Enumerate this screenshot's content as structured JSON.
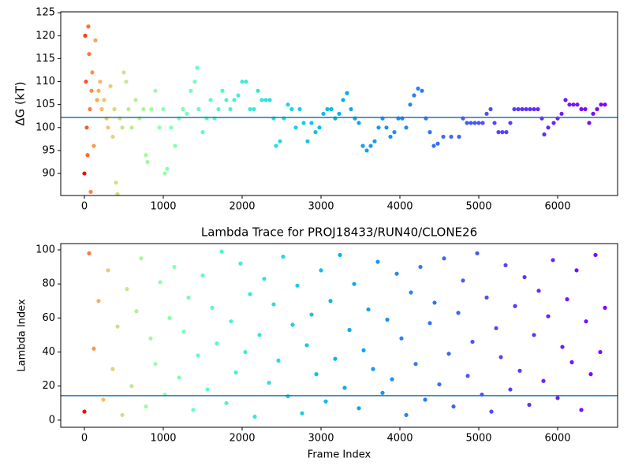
{
  "chart_data": [
    {
      "type": "scatter",
      "ylabel": "ΔG (kT)",
      "colormap": "rainbow_r",
      "hline": 102.2,
      "hline_color": "#1f77b4",
      "xlim": [
        -300,
        6760
      ],
      "xticks": [
        0,
        1000,
        2000,
        3000,
        4000,
        5000,
        6000
      ],
      "ylim": [
        85.2,
        125.2
      ],
      "yticks": [
        90,
        95,
        100,
        105,
        110,
        115,
        120,
        125
      ],
      "x": [
        0,
        10,
        20,
        30,
        40,
        50,
        60,
        70,
        80,
        90,
        100,
        120,
        140,
        160,
        180,
        200,
        220,
        250,
        280,
        300,
        330,
        360,
        380,
        400,
        420,
        450,
        480,
        500,
        530,
        560,
        600,
        650,
        700,
        750,
        780,
        800,
        850,
        900,
        950,
        1000,
        1020,
        1050,
        1100,
        1150,
        1200,
        1250,
        1300,
        1350,
        1400,
        1430,
        1450,
        1500,
        1550,
        1600,
        1650,
        1700,
        1750,
        1800,
        1850,
        1900,
        1950,
        2000,
        2050,
        2100,
        2150,
        2200,
        2250,
        2300,
        2350,
        2400,
        2430,
        2480,
        2530,
        2580,
        2630,
        2680,
        2730,
        2780,
        2830,
        2880,
        2930,
        2980,
        3030,
        3080,
        3130,
        3180,
        3230,
        3280,
        3330,
        3380,
        3430,
        3480,
        3530,
        3580,
        3630,
        3680,
        3730,
        3780,
        3830,
        3880,
        3930,
        3980,
        4030,
        4080,
        4130,
        4180,
        4230,
        4280,
        4330,
        4380,
        4430,
        4480,
        4550,
        4650,
        4750,
        4800,
        4850,
        4900,
        4950,
        5000,
        5050,
        5100,
        5150,
        5200,
        5250,
        5300,
        5350,
        5400,
        5450,
        5500,
        5550,
        5600,
        5650,
        5700,
        5750,
        5800,
        5830,
        5880,
        5950,
        6000,
        6050,
        6100,
        6150,
        6200,
        6250,
        6300,
        6350,
        6400,
        6450,
        6500,
        6550,
        6600
      ],
      "values": [
        90,
        120,
        110,
        100,
        94,
        122,
        116,
        104,
        86,
        108,
        112,
        96,
        119,
        106,
        108,
        110,
        104,
        106,
        102,
        100,
        109,
        98,
        104,
        88,
        85.5,
        102,
        100,
        112,
        110,
        104,
        100,
        106,
        102,
        104,
        94,
        92.5,
        104,
        108,
        100,
        104,
        90,
        91,
        100,
        96,
        102,
        104,
        103,
        108,
        110,
        113,
        104,
        99,
        102,
        106,
        102,
        104,
        108,
        106,
        104,
        106,
        107,
        110,
        110,
        104,
        104,
        108,
        106,
        106,
        106,
        102,
        96,
        97,
        102,
        105,
        104,
        100,
        104,
        101,
        97,
        101,
        99,
        100,
        103,
        104,
        104,
        102,
        103,
        106,
        107.5,
        104,
        102,
        101,
        96,
        95,
        96,
        97,
        100,
        102,
        100,
        98,
        99,
        102,
        102,
        100,
        105,
        107,
        108.5,
        108,
        102,
        99,
        96,
        96.5,
        98,
        98,
        98,
        102,
        101,
        101,
        101,
        101,
        101,
        103,
        104,
        101,
        99,
        99,
        99,
        101,
        104,
        104,
        104,
        104,
        104,
        104,
        104,
        102,
        98.5,
        100,
        101,
        102,
        103,
        106,
        105,
        105,
        105,
        104,
        104,
        101,
        103,
        104,
        105,
        105
      ]
    },
    {
      "type": "scatter",
      "title": "Lambda Trace for PROJ18433/RUN40/CLONE26",
      "xlabel": "Frame Index",
      "ylabel": "Lambda Index",
      "colormap": "rainbow_r",
      "hline": 14.4,
      "hline_color": "#1f77b4",
      "xlim": [
        -300,
        6760
      ],
      "xticks": [
        0,
        1000,
        2000,
        3000,
        4000,
        5000,
        6000
      ],
      "ylim": [
        -4.2,
        103.7
      ],
      "yticks": [
        0,
        20,
        40,
        60,
        80,
        100
      ],
      "x": [
        0,
        60,
        120,
        180,
        240,
        300,
        360,
        420,
        480,
        540,
        600,
        660,
        720,
        780,
        840,
        900,
        960,
        1020,
        1080,
        1140,
        1200,
        1260,
        1320,
        1380,
        1440,
        1500,
        1560,
        1620,
        1680,
        1740,
        1800,
        1860,
        1920,
        1980,
        2040,
        2100,
        2160,
        2220,
        2280,
        2340,
        2400,
        2460,
        2520,
        2580,
        2640,
        2700,
        2760,
        2820,
        2880,
        2940,
        3000,
        3060,
        3120,
        3180,
        3240,
        3300,
        3360,
        3420,
        3480,
        3540,
        3600,
        3660,
        3720,
        3780,
        3840,
        3900,
        3960,
        4020,
        4080,
        4140,
        4200,
        4260,
        4320,
        4380,
        4440,
        4500,
        4560,
        4620,
        4680,
        4740,
        4800,
        4860,
        4920,
        4980,
        5040,
        5100,
        5160,
        5220,
        5280,
        5340,
        5400,
        5460,
        5520,
        5580,
        5640,
        5700,
        5760,
        5820,
        5880,
        5940,
        6000,
        6060,
        6120,
        6180,
        6240,
        6300,
        6360,
        6420,
        6480,
        6540,
        6600
      ],
      "values": [
        5,
        98,
        42,
        70,
        12,
        88,
        30,
        55,
        3,
        77,
        20,
        64,
        95,
        8,
        48,
        33,
        81,
        15,
        60,
        90,
        25,
        52,
        72,
        6,
        38,
        85,
        18,
        66,
        45,
        99,
        10,
        58,
        28,
        92,
        40,
        74,
        2,
        50,
        83,
        22,
        68,
        35,
        96,
        14,
        56,
        79,
        4,
        44,
        62,
        27,
        88,
        11,
        70,
        36,
        97,
        19,
        53,
        80,
        7,
        41,
        65,
        30,
        93,
        16,
        59,
        24,
        86,
        48,
        3,
        75,
        33,
        90,
        12,
        57,
        69,
        21,
        95,
        39,
        8,
        63,
        82,
        26,
        46,
        98,
        15,
        72,
        5,
        54,
        37,
        91,
        18,
        67,
        29,
        84,
        9,
        50,
        76,
        23,
        61,
        94,
        13,
        43,
        71,
        34,
        88,
        6,
        58,
        27,
        97,
        40,
        66
      ]
    }
  ]
}
